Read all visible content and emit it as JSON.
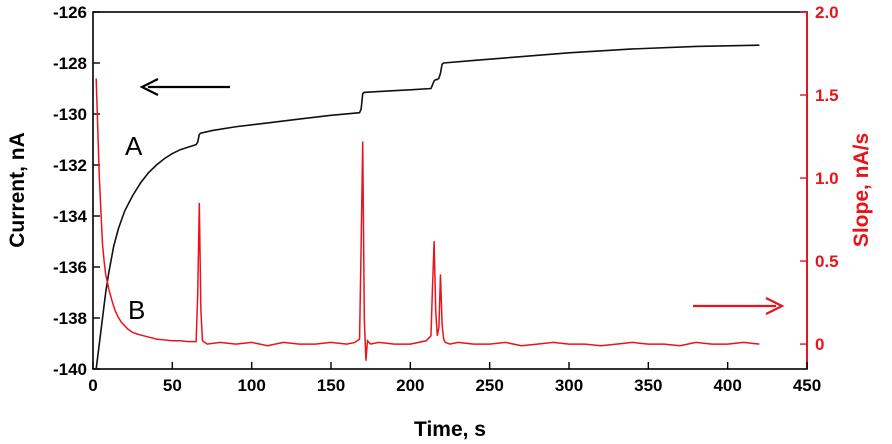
{
  "chart_data": {
    "type": "line",
    "xlabel": "Time, s",
    "ylabel_left": "Current, nA",
    "ylabel_right": "Slope, nA/s",
    "xlim": [
      0,
      450
    ],
    "ylim_left": [
      -140,
      -126
    ],
    "ylim_right": [
      -0.15,
      2.0
    ],
    "x_ticks": [
      "0",
      "50",
      "100",
      "150",
      "200",
      "250",
      "300",
      "350",
      "400",
      "450"
    ],
    "y_left_ticks": [
      "-140",
      "-138",
      "-136",
      "-134",
      "-132",
      "-130",
      "-128",
      "-126"
    ],
    "y_right_ticks": [
      "0",
      "0.5",
      "1.0",
      "1.5",
      "2.0"
    ],
    "grid": false,
    "colors": {
      "current": "#111111",
      "slope": "#e8141b",
      "axis": "#000000",
      "right_axis": "#e8141b"
    },
    "annotations": {
      "label_a": "A",
      "label_b": "B",
      "left_arrow": "arrow pointing left toward Current axis",
      "right_arrow": "arrow pointing right toward Slope axis"
    },
    "series": [
      {
        "axis": "left",
        "x": [
          2,
          4,
          6,
          8,
          10,
          13,
          16,
          20,
          25,
          30,
          35,
          40,
          45,
          50,
          55,
          60,
          65,
          66,
          67,
          68,
          75,
          90,
          110,
          130,
          150,
          168,
          169,
          170,
          171,
          172,
          185,
          200,
          213,
          214,
          215,
          216,
          217,
          218,
          219,
          220,
          221,
          240,
          260,
          300,
          340,
          380,
          420
        ],
        "y": [
          -140.0,
          -139.0,
          -138.0,
          -137.0,
          -136.2,
          -135.2,
          -134.5,
          -133.8,
          -133.2,
          -132.7,
          -132.3,
          -132.0,
          -131.75,
          -131.55,
          -131.4,
          -131.3,
          -131.2,
          -131.1,
          -130.8,
          -130.75,
          -130.65,
          -130.5,
          -130.35,
          -130.2,
          -130.05,
          -129.95,
          -129.8,
          -129.2,
          -129.15,
          -129.15,
          -129.1,
          -129.05,
          -129.0,
          -128.85,
          -128.7,
          -128.65,
          -128.65,
          -128.6,
          -128.4,
          -128.05,
          -128.0,
          -127.9,
          -127.8,
          -127.6,
          -127.45,
          -127.35,
          -127.3
        ]
      },
      {
        "axis": "right",
        "x": [
          2,
          3,
          4,
          5,
          6,
          7,
          8,
          10,
          12,
          14,
          16,
          18,
          20,
          22,
          25,
          28,
          32,
          36,
          40,
          45,
          50,
          55,
          60,
          65,
          66,
          67,
          68,
          69,
          72,
          80,
          90,
          100,
          110,
          120,
          130,
          140,
          150,
          160,
          165,
          168,
          169,
          170,
          171,
          172,
          173,
          175,
          180,
          190,
          200,
          210,
          213,
          214,
          215,
          216,
          217,
          218,
          219,
          220,
          221,
          222,
          225,
          230,
          240,
          250,
          260,
          270,
          280,
          290,
          300,
          310,
          320,
          330,
          340,
          350,
          360,
          370,
          380,
          390,
          400,
          410,
          420
        ],
        "y": [
          1.6,
          1.3,
          1.0,
          0.8,
          0.6,
          0.5,
          0.42,
          0.33,
          0.26,
          0.2,
          0.16,
          0.13,
          0.11,
          0.09,
          0.07,
          0.06,
          0.05,
          0.04,
          0.03,
          0.025,
          0.02,
          0.02,
          0.015,
          0.015,
          0.3,
          0.85,
          0.2,
          0.02,
          0.0,
          0.01,
          0.0,
          0.01,
          -0.01,
          0.01,
          0.0,
          0.0,
          0.01,
          0.0,
          0.01,
          0.03,
          0.6,
          1.22,
          0.15,
          -0.1,
          0.02,
          0.0,
          0.01,
          0.0,
          0.0,
          0.02,
          0.05,
          0.35,
          0.62,
          0.2,
          0.05,
          0.1,
          0.42,
          0.12,
          0.03,
          0.01,
          0.0,
          0.01,
          0.0,
          0.0,
          0.01,
          -0.01,
          0.0,
          0.01,
          0.0,
          0.0,
          -0.01,
          0.0,
          0.01,
          0.0,
          0.0,
          -0.01,
          0.01,
          0.0,
          0.0,
          0.01,
          0.0
        ]
      }
    ]
  }
}
